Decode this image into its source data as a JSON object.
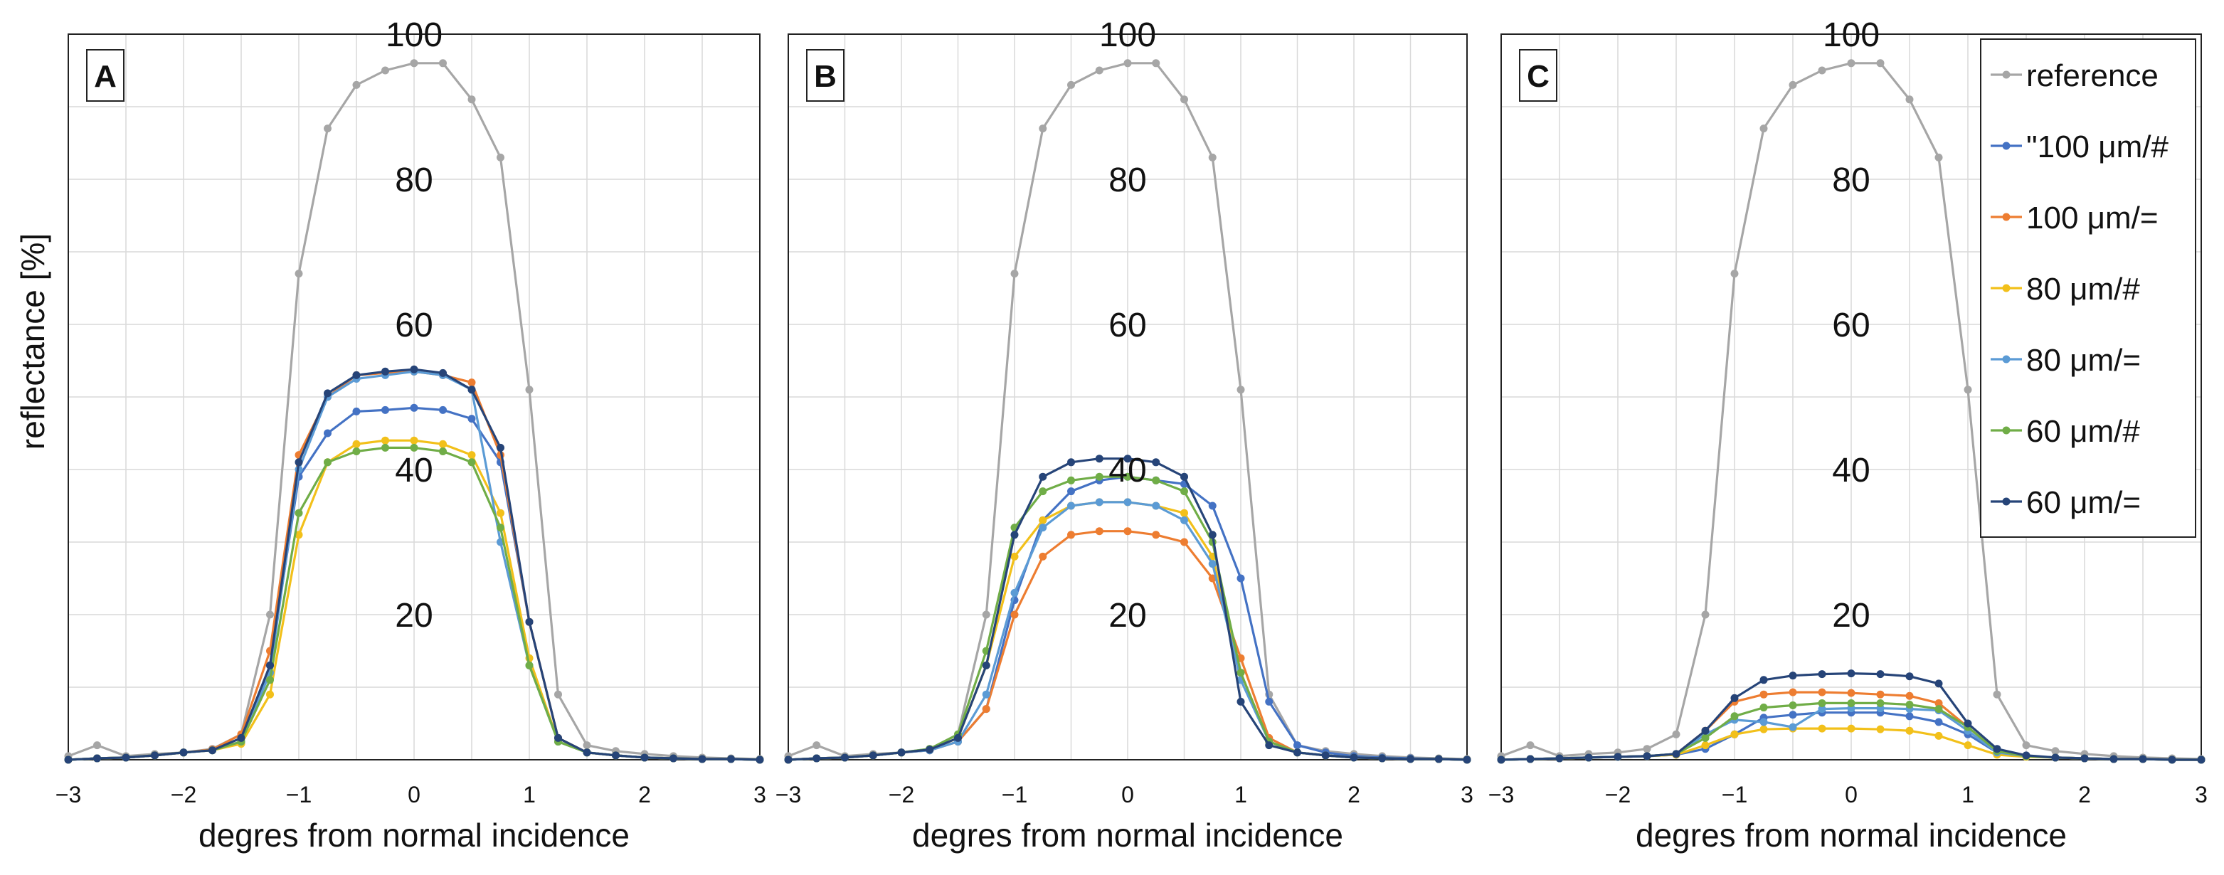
{
  "chart_data": {
    "type": "line",
    "ylabel": "reflectance [%]",
    "xlabel": "degres from normal incidence",
    "xlim": [
      -3,
      3
    ],
    "ylim": [
      0,
      100
    ],
    "xticks": [
      "−3",
      "−2",
      "−1",
      "0",
      "1",
      "2",
      "3"
    ],
    "yticks": [
      "20",
      "40",
      "60",
      "80",
      "100"
    ],
    "x": [
      -3.0,
      -2.75,
      -2.5,
      -2.25,
      -2.0,
      -1.75,
      -1.5,
      -1.25,
      -1.0,
      -0.75,
      -0.5,
      -0.25,
      0.0,
      0.25,
      0.5,
      0.75,
      1.0,
      1.25,
      1.5,
      1.75,
      2.0,
      2.25,
      2.5,
      2.75,
      3.0
    ],
    "colors": {
      "reference": "#a6a6a6",
      "s100h": "#4472c4",
      "s100e": "#ed7d31",
      "s80h": "#f2c01a",
      "s80e": "#5b9bd5",
      "s60h": "#70ad47",
      "s60e": "#264478"
    },
    "legend": [
      {
        "key": "reference",
        "label": "reference"
      },
      {
        "key": "s100h",
        "label": "\"100 μm/#"
      },
      {
        "key": "s100e",
        "label": "100 μm/="
      },
      {
        "key": "s80h",
        "label": "80 μm/#"
      },
      {
        "key": "s80e",
        "label": "80 μm/="
      },
      {
        "key": "s60h",
        "label": "60 μm/#"
      },
      {
        "key": "s60e",
        "label": "60 μm/="
      }
    ],
    "panels": [
      {
        "label": "A",
        "series": [
          {
            "key": "reference",
            "values": [
              0.5,
              2,
              0.5,
              0.8,
              1,
              1.5,
              3.5,
              20,
              67,
              87,
              93,
              95,
              96,
              96,
              91,
              83,
              51,
              9,
              2,
              1.2,
              0.8,
              0.5,
              0.3,
              0.2,
              0.1
            ]
          },
          {
            "key": "s100h",
            "values": [
              0,
              0.2,
              0.3,
              0.6,
              1,
              1.3,
              2.5,
              13,
              39,
              45,
              48,
              48.2,
              48.5,
              48.2,
              47,
              41,
              19,
              3,
              1,
              0.6,
              0.3,
              0.2,
              0.1,
              0.1,
              0
            ]
          },
          {
            "key": "s100e",
            "values": [
              0,
              0.2,
              0.3,
              0.6,
              1,
              1.4,
              3.5,
              15,
              42,
              50,
              53,
              53.3,
              53.5,
              53,
              52,
              42,
              19,
              3,
              1,
              0.6,
              0.3,
              0.2,
              0.1,
              0.1,
              0
            ]
          },
          {
            "key": "s80h",
            "values": [
              0,
              0.2,
              0.3,
              0.6,
              1,
              1.3,
              2.2,
              9,
              31,
              41,
              43.5,
              44,
              44,
              43.5,
              42,
              34,
              14,
              2.5,
              1,
              0.6,
              0.3,
              0.2,
              0.1,
              0.1,
              0
            ]
          },
          {
            "key": "s80e",
            "values": [
              0,
              0.2,
              0.3,
              0.6,
              1,
              1.3,
              2.5,
              12,
              40,
              50,
              52.5,
              53,
              53.5,
              53,
              51,
              30,
              13,
              2.5,
              1,
              0.6,
              0.3,
              0.2,
              0.1,
              0.1,
              0
            ]
          },
          {
            "key": "s60h",
            "values": [
              0,
              0.2,
              0.3,
              0.6,
              1,
              1.3,
              2.5,
              11,
              34,
              41,
              42.5,
              43,
              43,
              42.5,
              41,
              32,
              13,
              2.5,
              1,
              0.6,
              0.3,
              0.2,
              0.1,
              0.1,
              0
            ]
          },
          {
            "key": "s60e",
            "values": [
              0,
              0.2,
              0.3,
              0.6,
              1,
              1.3,
              3,
              13,
              41,
              50.5,
              53,
              53.5,
              53.8,
              53.3,
              51,
              43,
              19,
              3,
              1,
              0.6,
              0.3,
              0.2,
              0.1,
              0.1,
              0
            ]
          }
        ]
      },
      {
        "label": "B",
        "series": [
          {
            "key": "reference",
            "values": [
              0.5,
              2,
              0.5,
              0.8,
              1,
              1.5,
              3.5,
              20,
              67,
              87,
              93,
              95,
              96,
              96,
              91,
              83,
              51,
              9,
              2,
              1.2,
              0.8,
              0.5,
              0.3,
              0.2,
              0.1
            ]
          },
          {
            "key": "s100h",
            "values": [
              0,
              0.2,
              0.3,
              0.6,
              1,
              1.3,
              2.5,
              7,
              22,
              33,
              37,
              38.5,
              39,
              38.5,
              38,
              35,
              25,
              8,
              2,
              1,
              0.5,
              0.3,
              0.2,
              0.1,
              0
            ]
          },
          {
            "key": "s100e",
            "values": [
              0,
              0.2,
              0.3,
              0.6,
              1,
              1.3,
              2.5,
              7,
              20,
              28,
              31,
              31.5,
              31.5,
              31,
              30,
              25,
              14,
              3,
              1,
              0.6,
              0.3,
              0.2,
              0.1,
              0.1,
              0
            ]
          },
          {
            "key": "s80h",
            "values": [
              0,
              0.2,
              0.3,
              0.6,
              1,
              1.4,
              3,
              13,
              28,
              33,
              35,
              35.5,
              35.5,
              35,
              34,
              28,
              12,
              2.5,
              1,
              0.6,
              0.3,
              0.2,
              0.1,
              0.1,
              0
            ]
          },
          {
            "key": "s80e",
            "values": [
              0,
              0.2,
              0.3,
              0.6,
              1,
              1.3,
              2.5,
              9,
              23,
              32,
              35,
              35.5,
              35.5,
              35,
              33,
              27,
              11,
              2.5,
              1,
              0.6,
              0.3,
              0.2,
              0.1,
              0.1,
              0
            ]
          },
          {
            "key": "s60h",
            "values": [
              0,
              0.2,
              0.3,
              0.6,
              1,
              1.5,
              3.5,
              15,
              32,
              37,
              38.5,
              39,
              39,
              38.5,
              37,
              30,
              12,
              2.5,
              1,
              0.6,
              0.3,
              0.2,
              0.1,
              0.1,
              0
            ]
          },
          {
            "key": "s60e",
            "values": [
              0,
              0.2,
              0.3,
              0.6,
              1,
              1.4,
              3,
              13,
              31,
              39,
              41,
              41.5,
              41.5,
              41,
              39,
              31,
              8,
              2,
              1,
              0.6,
              0.3,
              0.2,
              0.1,
              0.1,
              0
            ]
          }
        ]
      },
      {
        "label": "C",
        "series": [
          {
            "key": "reference",
            "values": [
              0.5,
              2,
              0.5,
              0.8,
              1,
              1.5,
              3.5,
              20,
              67,
              87,
              93,
              95,
              96,
              96,
              91,
              83,
              51,
              9,
              2,
              1.2,
              0.8,
              0.5,
              0.3,
              0.2,
              0.1
            ]
          },
          {
            "key": "s100h",
            "values": [
              0,
              0.1,
              0.2,
              0.3,
              0.4,
              0.5,
              0.7,
              1.5,
              3.5,
              5.8,
              6.2,
              6.5,
              6.5,
              6.5,
              6,
              5.2,
              3.5,
              1,
              0.5,
              0.3,
              0.2,
              0.1,
              0.1,
              0,
              0
            ]
          },
          {
            "key": "s100e",
            "values": [
              0,
              0.1,
              0.2,
              0.3,
              0.4,
              0.5,
              0.8,
              4,
              8,
              9,
              9.3,
              9.3,
              9.2,
              9,
              8.8,
              7.8,
              4.5,
              1.2,
              0.5,
              0.3,
              0.2,
              0.1,
              0.1,
              0,
              0
            ]
          },
          {
            "key": "s80h",
            "values": [
              0,
              0.1,
              0.2,
              0.3,
              0.4,
              0.5,
              0.7,
              2,
              3.5,
              4.2,
              4.3,
              4.3,
              4.3,
              4.2,
              4,
              3.3,
              2,
              0.7,
              0.4,
              0.3,
              0.2,
              0.1,
              0.1,
              0,
              0
            ]
          },
          {
            "key": "s80e",
            "values": [
              0,
              0.1,
              0.2,
              0.3,
              0.4,
              0.5,
              0.8,
              3.5,
              5.5,
              5.2,
              4.5,
              7,
              7.1,
              7.1,
              7,
              6.8,
              4,
              1,
              0.5,
              0.3,
              0.2,
              0.1,
              0.1,
              0,
              0
            ]
          },
          {
            "key": "s60h",
            "values": [
              0,
              0.1,
              0.2,
              0.3,
              0.4,
              0.5,
              0.8,
              3,
              6,
              7.2,
              7.5,
              7.8,
              7.8,
              7.8,
              7.6,
              7,
              4.5,
              1.2,
              0.5,
              0.3,
              0.2,
              0.1,
              0.1,
              0,
              0
            ]
          },
          {
            "key": "s60e",
            "values": [
              0,
              0.1,
              0.2,
              0.3,
              0.4,
              0.5,
              0.8,
              4,
              8.5,
              11,
              11.6,
              11.8,
              11.9,
              11.8,
              11.5,
              10.5,
              5,
              1.5,
              0.6,
              0.3,
              0.2,
              0.1,
              0.1,
              0,
              0
            ]
          }
        ]
      }
    ]
  }
}
